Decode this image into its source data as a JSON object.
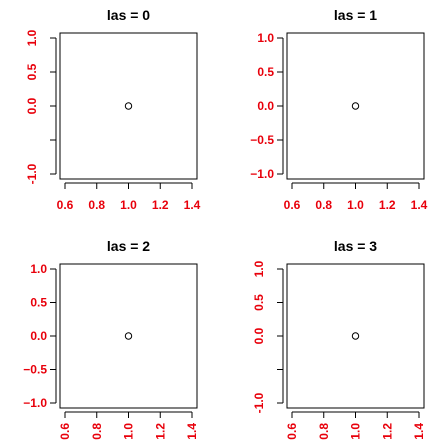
{
  "tick_label_color": "#e8000b",
  "chart_data": [
    {
      "type": "scatter",
      "title": "las = 0",
      "las": 0,
      "points": [
        {
          "x": 1.0,
          "y": 0.0
        }
      ],
      "xlim": [
        0.6,
        1.4
      ],
      "ylim": [
        -1.0,
        1.0
      ],
      "x_ticks": [
        0.6,
        0.8,
        1.0,
        1.2,
        1.4
      ],
      "x_tick_labels": [
        "0.6",
        "0.8",
        "1.0",
        "1.2",
        "1.4"
      ],
      "y_ticks": [
        -1.0,
        -0.5,
        0.0,
        0.5,
        1.0
      ],
      "y_tick_labels": [
        "-1.0",
        "",
        "0.0",
        "0.5",
        "1.0"
      ],
      "xlabel": "",
      "ylabel": "",
      "grid": false,
      "legend": null
    },
    {
      "type": "scatter",
      "title": "las = 1",
      "las": 1,
      "points": [
        {
          "x": 1.0,
          "y": 0.0
        }
      ],
      "xlim": [
        0.6,
        1.4
      ],
      "ylim": [
        -1.0,
        1.0
      ],
      "x_ticks": [
        0.6,
        0.8,
        1.0,
        1.2,
        1.4
      ],
      "x_tick_labels": [
        "0.6",
        "0.8",
        "1.0",
        "1.2",
        "1.4"
      ],
      "y_ticks": [
        -1.0,
        -0.5,
        0.0,
        0.5,
        1.0
      ],
      "y_tick_labels": [
        "−1.0",
        "−0.5",
        "0.0",
        "0.5",
        "1.0"
      ],
      "xlabel": "",
      "ylabel": "",
      "grid": false,
      "legend": null
    },
    {
      "type": "scatter",
      "title": "las = 2",
      "las": 2,
      "points": [
        {
          "x": 1.0,
          "y": 0.0
        }
      ],
      "xlim": [
        0.6,
        1.4
      ],
      "ylim": [
        -1.0,
        1.0
      ],
      "x_ticks": [
        0.6,
        0.8,
        1.0,
        1.2,
        1.4
      ],
      "x_tick_labels": [
        "0.6",
        "0.8",
        "1.0",
        "1.2",
        "1.4"
      ],
      "y_ticks": [
        -1.0,
        -0.5,
        0.0,
        0.5,
        1.0
      ],
      "y_tick_labels": [
        "−1.0",
        "−0.5",
        "0.0",
        "0.5",
        "1.0"
      ],
      "xlabel": "",
      "ylabel": "",
      "grid": false,
      "legend": null
    },
    {
      "type": "scatter",
      "title": "las = 3",
      "las": 3,
      "points": [
        {
          "x": 1.0,
          "y": 0.0
        }
      ],
      "xlim": [
        0.6,
        1.4
      ],
      "ylim": [
        -1.0,
        1.0
      ],
      "x_ticks": [
        0.6,
        0.8,
        1.0,
        1.2,
        1.4
      ],
      "x_tick_labels": [
        "0.6",
        "0.8",
        "1.0",
        "1.2",
        "1.4"
      ],
      "y_ticks": [
        -1.0,
        -0.5,
        0.0,
        0.5,
        1.0
      ],
      "y_tick_labels": [
        "-1.0",
        "",
        "0.0",
        "0.5",
        "1.0"
      ],
      "xlabel": "",
      "ylabel": "",
      "grid": false,
      "legend": null
    }
  ]
}
